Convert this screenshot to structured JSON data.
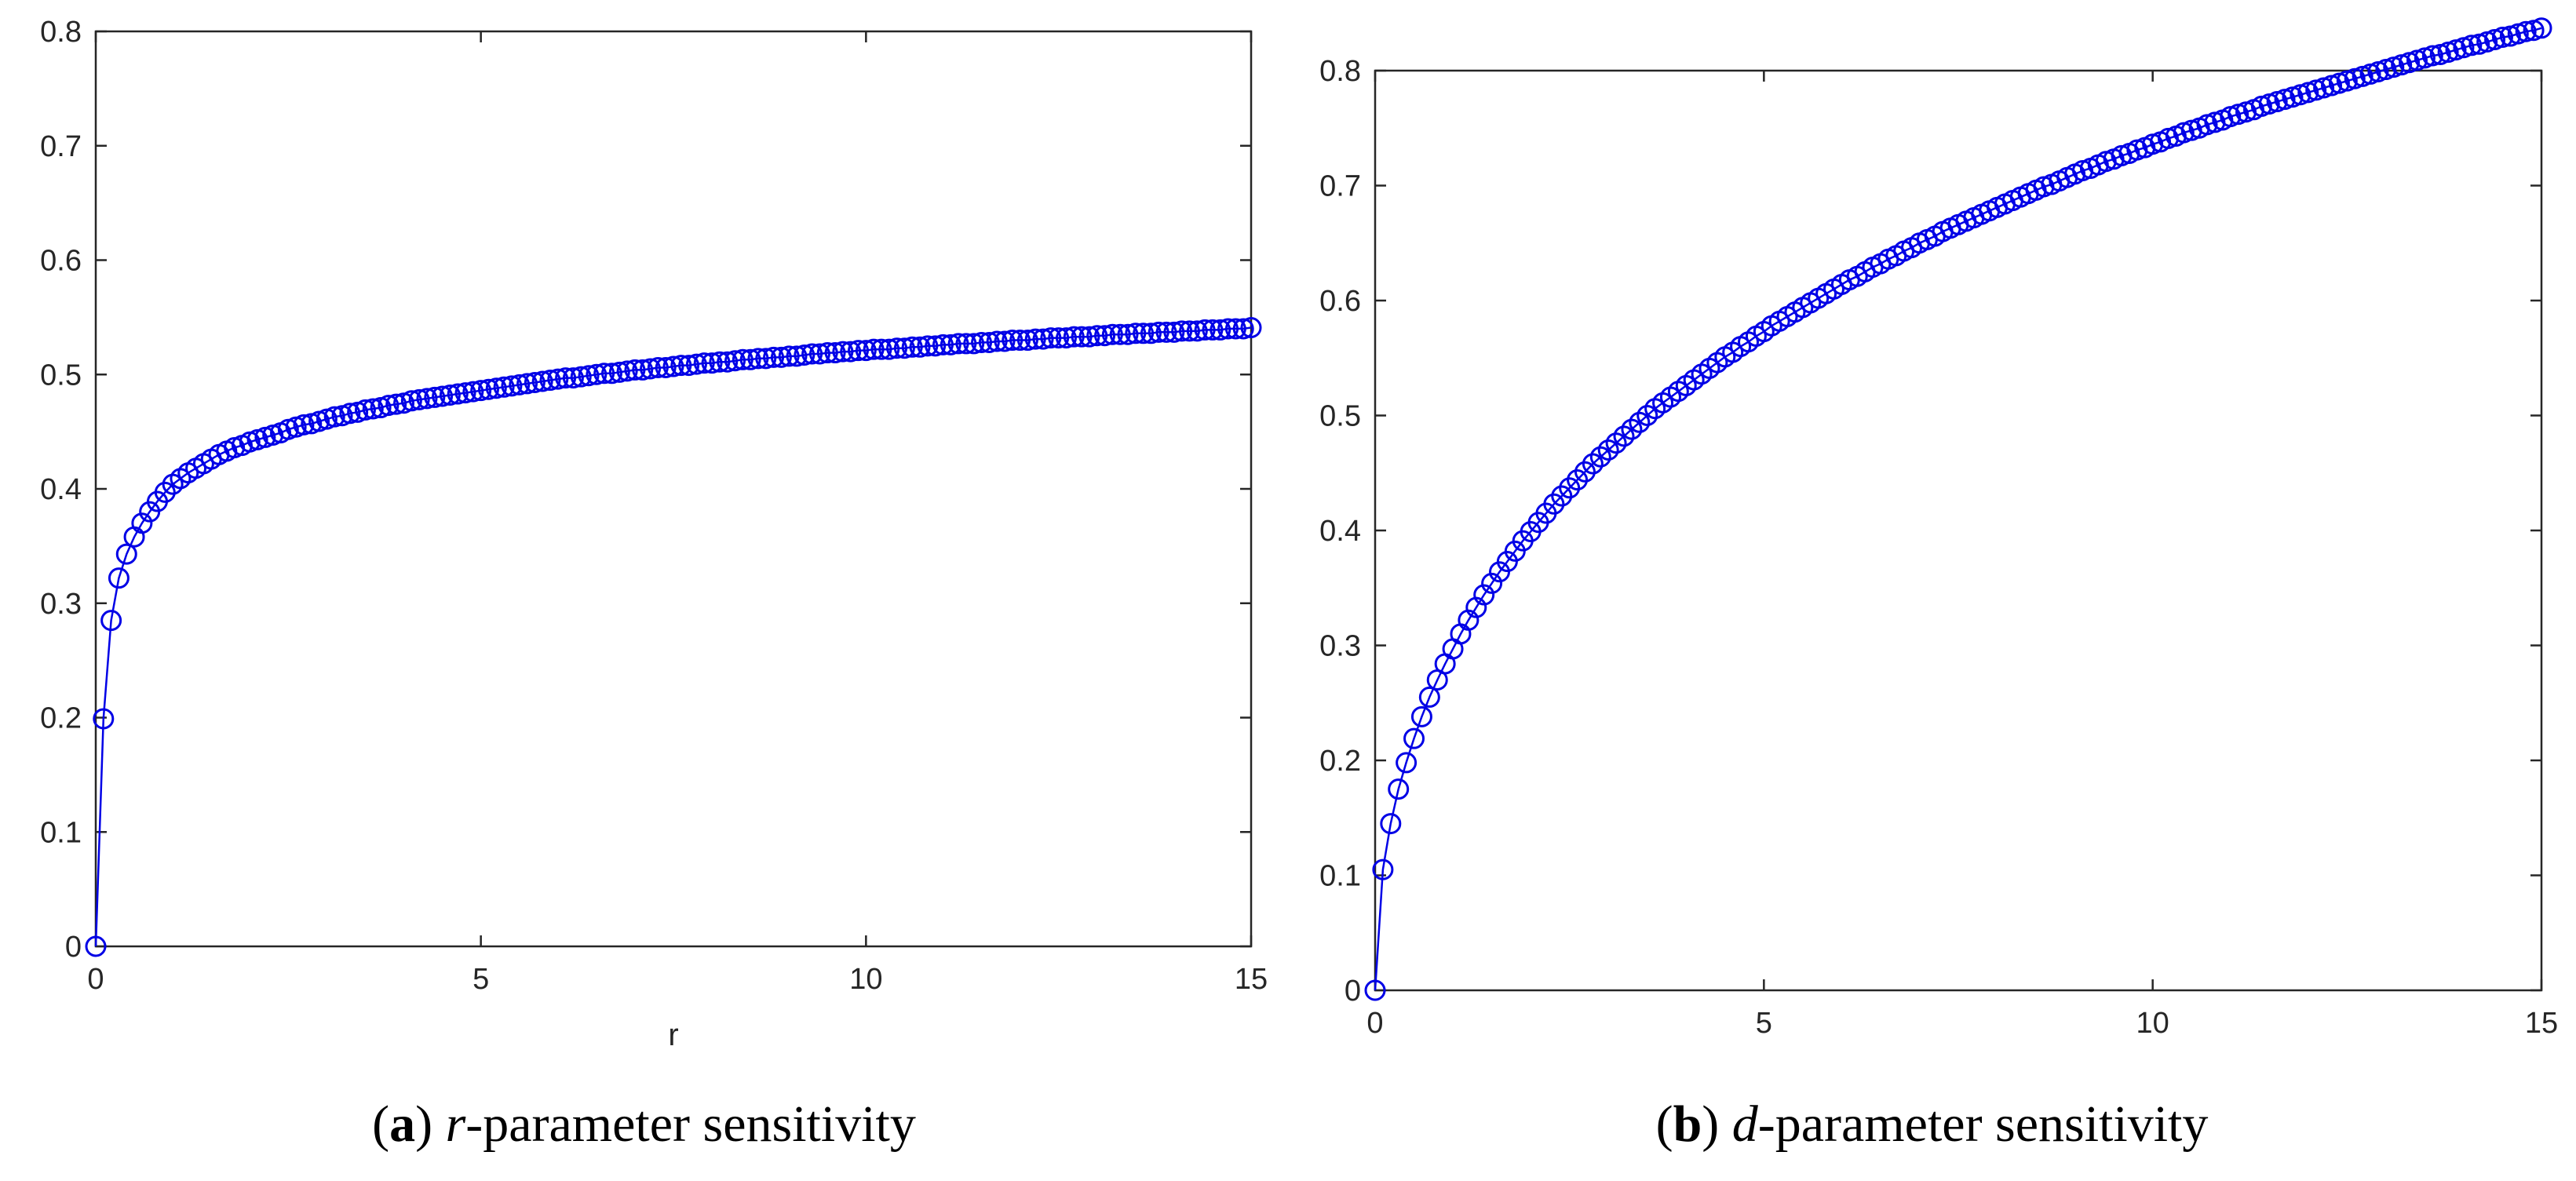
{
  "captions": [
    {
      "open": "(",
      "letter": "a",
      "close": ")",
      "param": "r",
      "text": "-parameter sensitivity"
    },
    {
      "open": "(",
      "letter": "b",
      "close": ")",
      "param": "d",
      "text": "-parameter sensitivity"
    }
  ],
  "colors": {
    "series": "#0000e6",
    "axis": "#262626"
  },
  "chart_data": [
    {
      "type": "line",
      "marker": "circle",
      "title": "",
      "xlabel": "r",
      "ylabel": "",
      "xlim": [
        0,
        15
      ],
      "ylim": [
        0,
        0.8
      ],
      "xticks": [
        0,
        5,
        10,
        15
      ],
      "xtick_labels": [
        "0",
        "5",
        "10",
        "15"
      ],
      "yticks": [
        0,
        0.1,
        0.2,
        0.3,
        0.4,
        0.5,
        0.6,
        0.7,
        0.8
      ],
      "ytick_labels": [
        "0",
        "0.1",
        "0.2",
        "0.3",
        "0.4",
        "0.5",
        "0.6",
        "0.7",
        "0.8"
      ],
      "grid": false,
      "x": [
        0,
        0.1,
        0.2,
        0.3,
        0.4,
        0.5,
        0.6,
        0.7,
        0.8,
        0.9,
        1,
        1.1,
        1.2,
        1.3,
        1.4,
        1.5,
        1.6,
        1.7,
        1.8,
        1.9,
        2,
        2.1,
        2.2,
        2.3,
        2.4,
        2.5,
        2.6,
        2.7,
        2.8,
        2.9,
        3,
        3.1,
        3.2,
        3.3,
        3.4,
        3.5,
        3.6,
        3.7,
        3.8,
        3.9,
        4,
        4.1,
        4.2,
        4.3,
        4.4,
        4.5,
        4.6,
        4.7,
        4.8,
        4.9,
        5,
        5.1,
        5.2,
        5.3,
        5.4,
        5.5,
        5.6,
        5.7,
        5.8,
        5.9,
        6,
        6.1,
        6.2,
        6.3,
        6.4,
        6.5,
        6.6,
        6.7,
        6.8,
        6.9,
        7,
        7.1,
        7.2,
        7.3,
        7.4,
        7.5,
        7.6,
        7.7,
        7.8,
        7.9,
        8,
        8.1,
        8.2,
        8.3,
        8.4,
        8.5,
        8.6,
        8.7,
        8.8,
        8.9,
        9,
        9.1,
        9.2,
        9.3,
        9.4,
        9.5,
        9.6,
        9.7,
        9.8,
        9.9,
        10,
        10.1,
        10.2,
        10.3,
        10.4,
        10.5,
        10.6,
        10.7,
        10.8,
        10.9,
        11,
        11.1,
        11.2,
        11.3,
        11.4,
        11.5,
        11.6,
        11.7,
        11.8,
        11.9,
        12,
        12.1,
        12.2,
        12.3,
        12.4,
        12.5,
        12.6,
        12.7,
        12.8,
        12.9,
        13,
        13.1,
        13.2,
        13.3,
        13.4,
        13.5,
        13.6,
        13.7,
        13.8,
        13.9,
        14,
        14.1,
        14.2,
        14.3,
        14.4,
        14.5,
        14.6,
        14.7,
        14.8,
        14.9,
        15
      ],
      "y": [
        0,
        0.199,
        0.285,
        0.322,
        0.343,
        0.358,
        0.37,
        0.38,
        0.389,
        0.397,
        0.404,
        0.409,
        0.414,
        0.418,
        0.422,
        0.426,
        0.43,
        0.433,
        0.436,
        0.438,
        0.441,
        0.443,
        0.445,
        0.447,
        0.449,
        0.452,
        0.454,
        0.456,
        0.457,
        0.459,
        0.461,
        0.463,
        0.464,
        0.466,
        0.467,
        0.469,
        0.47,
        0.471,
        0.473,
        0.474,
        0.475,
        0.477,
        0.478,
        0.479,
        0.48,
        0.481,
        0.482,
        0.483,
        0.484,
        0.485,
        0.486,
        0.487,
        0.488,
        0.489,
        0.49,
        0.491,
        0.492,
        0.493,
        0.494,
        0.495,
        0.496,
        0.497,
        0.497,
        0.498,
        0.499,
        0.5,
        0.501,
        0.501,
        0.502,
        0.503,
        0.504,
        0.504,
        0.505,
        0.506,
        0.506,
        0.507,
        0.508,
        0.508,
        0.509,
        0.51,
        0.51,
        0.511,
        0.511,
        0.512,
        0.513,
        0.513,
        0.514,
        0.514,
        0.515,
        0.515,
        0.516,
        0.516,
        0.517,
        0.518,
        0.518,
        0.519,
        0.519,
        0.52,
        0.52,
        0.521,
        0.521,
        0.522,
        0.522,
        0.522,
        0.523,
        0.523,
        0.524,
        0.524,
        0.525,
        0.525,
        0.526,
        0.526,
        0.527,
        0.527,
        0.527,
        0.528,
        0.528,
        0.529,
        0.529,
        0.53,
        0.53,
        0.53,
        0.531,
        0.531,
        0.532,
        0.532,
        0.532,
        0.533,
        0.533,
        0.533,
        0.534,
        0.534,
        0.535,
        0.535,
        0.535,
        0.536,
        0.536,
        0.536,
        0.537,
        0.537,
        0.537,
        0.538,
        0.538,
        0.538,
        0.539,
        0.539,
        0.539,
        0.54,
        0.54,
        0.54,
        0.541
      ]
    },
    {
      "type": "line",
      "marker": "circle",
      "title": "",
      "xlabel": "",
      "ylabel": "",
      "xlim": [
        0,
        15
      ],
      "ylim": [
        0,
        0.8
      ],
      "xticks": [
        0,
        5,
        10,
        15
      ],
      "xtick_labels": [
        "0",
        "5",
        "10",
        "15"
      ],
      "yticks": [
        0,
        0.1,
        0.2,
        0.3,
        0.4,
        0.5,
        0.6,
        0.7,
        0.8
      ],
      "ytick_labels": [
        "0",
        "0.1",
        "0.2",
        "0.3",
        "0.4",
        "0.5",
        "0.6",
        "0.7",
        "0.8"
      ],
      "grid": false,
      "x": [
        0,
        0.1,
        0.2,
        0.3,
        0.4,
        0.5,
        0.6,
        0.7,
        0.8,
        0.9,
        1,
        1.1,
        1.2,
        1.3,
        1.4,
        1.5,
        1.6,
        1.7,
        1.8,
        1.9,
        2,
        2.1,
        2.2,
        2.3,
        2.4,
        2.5,
        2.6,
        2.7,
        2.8,
        2.9,
        3,
        3.1,
        3.2,
        3.3,
        3.4,
        3.5,
        3.6,
        3.7,
        3.8,
        3.9,
        4,
        4.1,
        4.2,
        4.3,
        4.4,
        4.5,
        4.6,
        4.7,
        4.8,
        4.9,
        5,
        5.1,
        5.2,
        5.3,
        5.4,
        5.5,
        5.6,
        5.7,
        5.8,
        5.9,
        6,
        6.1,
        6.2,
        6.3,
        6.4,
        6.5,
        6.6,
        6.7,
        6.8,
        6.9,
        7,
        7.1,
        7.2,
        7.3,
        7.4,
        7.5,
        7.6,
        7.7,
        7.8,
        7.9,
        8,
        8.1,
        8.2,
        8.3,
        8.4,
        8.5,
        8.6,
        8.7,
        8.8,
        8.9,
        9,
        9.1,
        9.2,
        9.3,
        9.4,
        9.5,
        9.6,
        9.7,
        9.8,
        9.9,
        10,
        10.1,
        10.2,
        10.3,
        10.4,
        10.5,
        10.6,
        10.7,
        10.8,
        10.9,
        11,
        11.1,
        11.2,
        11.3,
        11.4,
        11.5,
        11.6,
        11.7,
        11.8,
        11.9,
        12,
        12.1,
        12.2,
        12.3,
        12.4,
        12.5,
        12.6,
        12.7,
        12.8,
        12.9,
        13,
        13.1,
        13.2,
        13.3,
        13.4,
        13.5,
        13.6,
        13.7,
        13.8,
        13.9,
        14,
        14.1,
        14.2,
        14.3,
        14.4,
        14.5,
        14.6,
        14.7,
        14.8,
        14.9,
        15
      ],
      "y": [
        0,
        0.105,
        0.145,
        0.175,
        0.198,
        0.219,
        0.238,
        0.255,
        0.27,
        0.284,
        0.297,
        0.31,
        0.322,
        0.333,
        0.344,
        0.354,
        0.364,
        0.373,
        0.382,
        0.391,
        0.399,
        0.407,
        0.415,
        0.423,
        0.43,
        0.437,
        0.444,
        0.451,
        0.458,
        0.464,
        0.47,
        0.476,
        0.482,
        0.488,
        0.494,
        0.5,
        0.506,
        0.511,
        0.516,
        0.521,
        0.526,
        0.531,
        0.536,
        0.541,
        0.546,
        0.551,
        0.555,
        0.56,
        0.564,
        0.569,
        0.573,
        0.578,
        0.582,
        0.586,
        0.59,
        0.594,
        0.598,
        0.602,
        0.606,
        0.61,
        0.614,
        0.618,
        0.621,
        0.625,
        0.629,
        0.632,
        0.636,
        0.639,
        0.643,
        0.646,
        0.65,
        0.653,
        0.656,
        0.66,
        0.663,
        0.666,
        0.669,
        0.672,
        0.675,
        0.678,
        0.681,
        0.684,
        0.687,
        0.69,
        0.693,
        0.696,
        0.699,
        0.701,
        0.704,
        0.707,
        0.71,
        0.713,
        0.715,
        0.718,
        0.721,
        0.723,
        0.726,
        0.728,
        0.731,
        0.733,
        0.736,
        0.738,
        0.741,
        0.743,
        0.746,
        0.748,
        0.75,
        0.753,
        0.755,
        0.757,
        0.76,
        0.762,
        0.764,
        0.766,
        0.769,
        0.771,
        0.773,
        0.775,
        0.777,
        0.779,
        0.781,
        0.783,
        0.785,
        0.787,
        0.789,
        0.791,
        0.793,
        0.795,
        0.797,
        0.799,
        0.801,
        0.803,
        0.805,
        0.807,
        0.809,
        0.811,
        0.813,
        0.814,
        0.816,
        0.818,
        0.82,
        0.822,
        0.823,
        0.825,
        0.827,
        0.829,
        0.83,
        0.832,
        0.834,
        0.835,
        0.837
      ]
    }
  ]
}
